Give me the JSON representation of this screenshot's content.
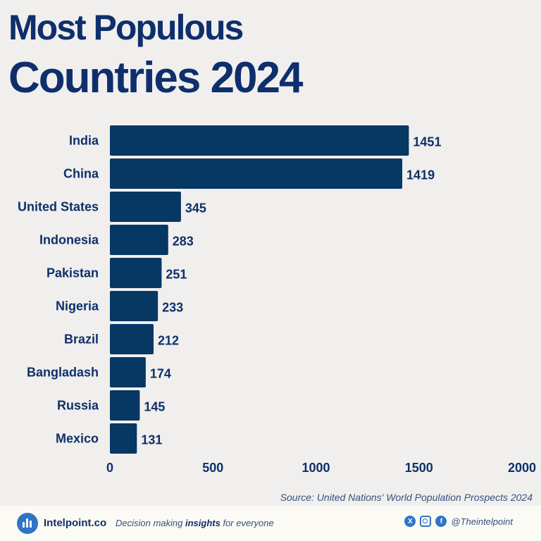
{
  "title_line1": "Most Populous",
  "title_line2": "Countries 2024",
  "chart_data": {
    "type": "bar",
    "orientation": "horizontal",
    "categories": [
      "India",
      "China",
      "United States",
      "Indonesia",
      "Pakistan",
      "Nigeria",
      "Brazil",
      "Bangladash",
      "Russia",
      "Mexico"
    ],
    "values": [
      1451,
      1419,
      345,
      283,
      251,
      233,
      212,
      174,
      145,
      131
    ],
    "xlim": [
      0,
      2000
    ],
    "xticks": [
      0,
      500,
      1000,
      1500,
      2000
    ],
    "grid": false,
    "bar_color": "#073763"
  },
  "source": "Source: United Nations' World Population Prospects 2024",
  "footer": {
    "brand": "Intelpoint.co",
    "tagline_pre": "Decision making ",
    "tagline_bold": "insights",
    "tagline_post": " for everyone",
    "handle": "@Theintelpoint",
    "icons": [
      "x-icon",
      "instagram-icon",
      "facebook-icon"
    ]
  }
}
